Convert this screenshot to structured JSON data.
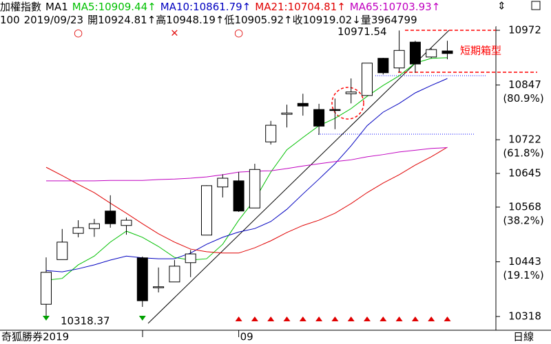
{
  "header": {
    "title": "加權指數",
    "ma_type": "MA1",
    "separator": ":",
    "period": "100",
    "date": "2019/09/23",
    "open_label": "開",
    "high_label": "高",
    "low_label": "低",
    "close_label": "收",
    "volume_label": "量",
    "open_arrow": "↑",
    "high_arrow": "↑",
    "low_arrow": "↑",
    "close_arrow": "↓",
    "volume": 3964799,
    "watermark": "奇狐勝券2019",
    "timeframe": "日線",
    "box_label": "短期箱型"
  },
  "chart_data": {
    "type": "candlestick",
    "categories": [
      null,
      null,
      null,
      null,
      null,
      null,
      null,
      null,
      null,
      null,
      null,
      null,
      "09",
      null,
      null,
      null,
      null,
      null,
      null,
      null,
      null,
      null,
      null,
      null,
      null,
      null
    ],
    "open": [
      10346,
      10448,
      10508,
      10519,
      10559,
      10526,
      10452,
      10384,
      10397,
      10441,
      10504,
      10614,
      10628,
      10566,
      10717,
      10780,
      10805,
      10791,
      10791,
      10827,
      10823,
      10908,
      10886,
      10945,
      10911,
      10924.81
    ],
    "high": [
      10453,
      10518,
      10538,
      10541,
      10595,
      10544,
      10455,
      10430,
      10447,
      10470,
      10618,
      10643,
      10648,
      10667,
      10765,
      10802,
      10827,
      10804,
      10816,
      10862,
      10897,
      10909,
      10971.54,
      10948,
      10931,
      10948.19
    ],
    "low": [
      10318.37,
      10448,
      10499,
      10500,
      10521,
      10505,
      10340,
      10373,
      10397,
      10408,
      10504,
      10590,
      10557,
      10566,
      10711,
      10750,
      10777,
      10733,
      10746,
      10805,
      10823,
      10871,
      10876,
      10875,
      10908,
      10905.92
    ],
    "close": [
      10419,
      10488,
      10521,
      10530,
      10530,
      10538,
      10354,
      10386,
      10433,
      10461,
      10617,
      10634,
      10559,
      10654,
      10755,
      10783,
      10799,
      10753,
      10790,
      10831,
      10897,
      10875,
      10926,
      10895,
      10928,
      10919.02
    ],
    "up_fill": "#ffffff",
    "down_fill": "#000000",
    "candle_stroke": "#000000",
    "series": [
      {
        "name": "MA5",
        "color": "#00c000",
        "arrow": "↑",
        "values": [
          10401,
          10405,
          10436,
          10456,
          10488,
          10513,
          10499,
          10478,
          10453,
          10447,
          10450,
          10483,
          10538,
          10585,
          10648,
          10699,
          10727,
          10754,
          10771,
          10793,
          10821,
          10846,
          10868,
          10897,
          10908,
          10909.44
        ]
      },
      {
        "name": "MA10",
        "color": "#0000c0",
        "arrow": "↑",
        "values": [
          10423,
          10420,
          10427,
          10436,
          10447,
          10456,
          10452,
          10450,
          10450,
          10463,
          10483,
          10499,
          10511,
          10519,
          10535,
          10563,
          10598,
          10632,
          10667,
          10708,
          10754,
          10785,
          10805,
          10829,
          10846,
          10861.79
        ]
      },
      {
        "name": "MA21",
        "color": "#e00000",
        "arrow": "↑",
        "values": [
          10659,
          10640,
          10620,
          10601,
          10577,
          10554,
          10530,
          10507,
          10488,
          10472,
          10466,
          10463,
          10463,
          10475,
          10491,
          10510,
          10526,
          10538,
          10554,
          10576,
          10601,
          10623,
          10642,
          10664,
          10683,
          10704.81
        ]
      },
      {
        "name": "MA65",
        "color": "#c000c0",
        "arrow": "↑",
        "values": [
          10628,
          10628,
          10628,
          10628,
          10629,
          10629,
          10629,
          10631,
          10632,
          10634,
          10637,
          10642,
          10648,
          10650,
          10651,
          10656,
          10662,
          10667,
          10672,
          10676,
          10683,
          10688,
          10694,
          10698,
          10702,
          10703.93
        ]
      }
    ],
    "ylim": [
      10286.6,
      11009.8
    ],
    "yticks": [
      10318,
      10443,
      10568,
      10645,
      10722,
      10847,
      10972
    ],
    "fib_labels": [
      {
        "value": 10443,
        "label": "(19.1%)"
      },
      {
        "value": 10568,
        "label": "(38.2%)"
      },
      {
        "value": 10722,
        "label": "(61.8%)"
      },
      {
        "value": 10847,
        "label": "(80.9%)"
      }
    ],
    "top_signals": [
      null,
      null,
      "○",
      null,
      null,
      null,
      null,
      null,
      "×",
      null,
      null,
      null,
      "○",
      null,
      null,
      null,
      null,
      null,
      null,
      null,
      null,
      null,
      null,
      null,
      null,
      null
    ],
    "bottom_signals": [
      "down",
      null,
      null,
      null,
      null,
      null,
      "down",
      null,
      null,
      null,
      null,
      null,
      "up",
      "up",
      "up",
      "up",
      "up",
      "up",
      "up",
      "up",
      "up",
      "up",
      "up",
      "up",
      "up",
      "up"
    ],
    "signal_color": "#e00000",
    "up_color": "#e00000",
    "down_color": "#00a000"
  }
}
